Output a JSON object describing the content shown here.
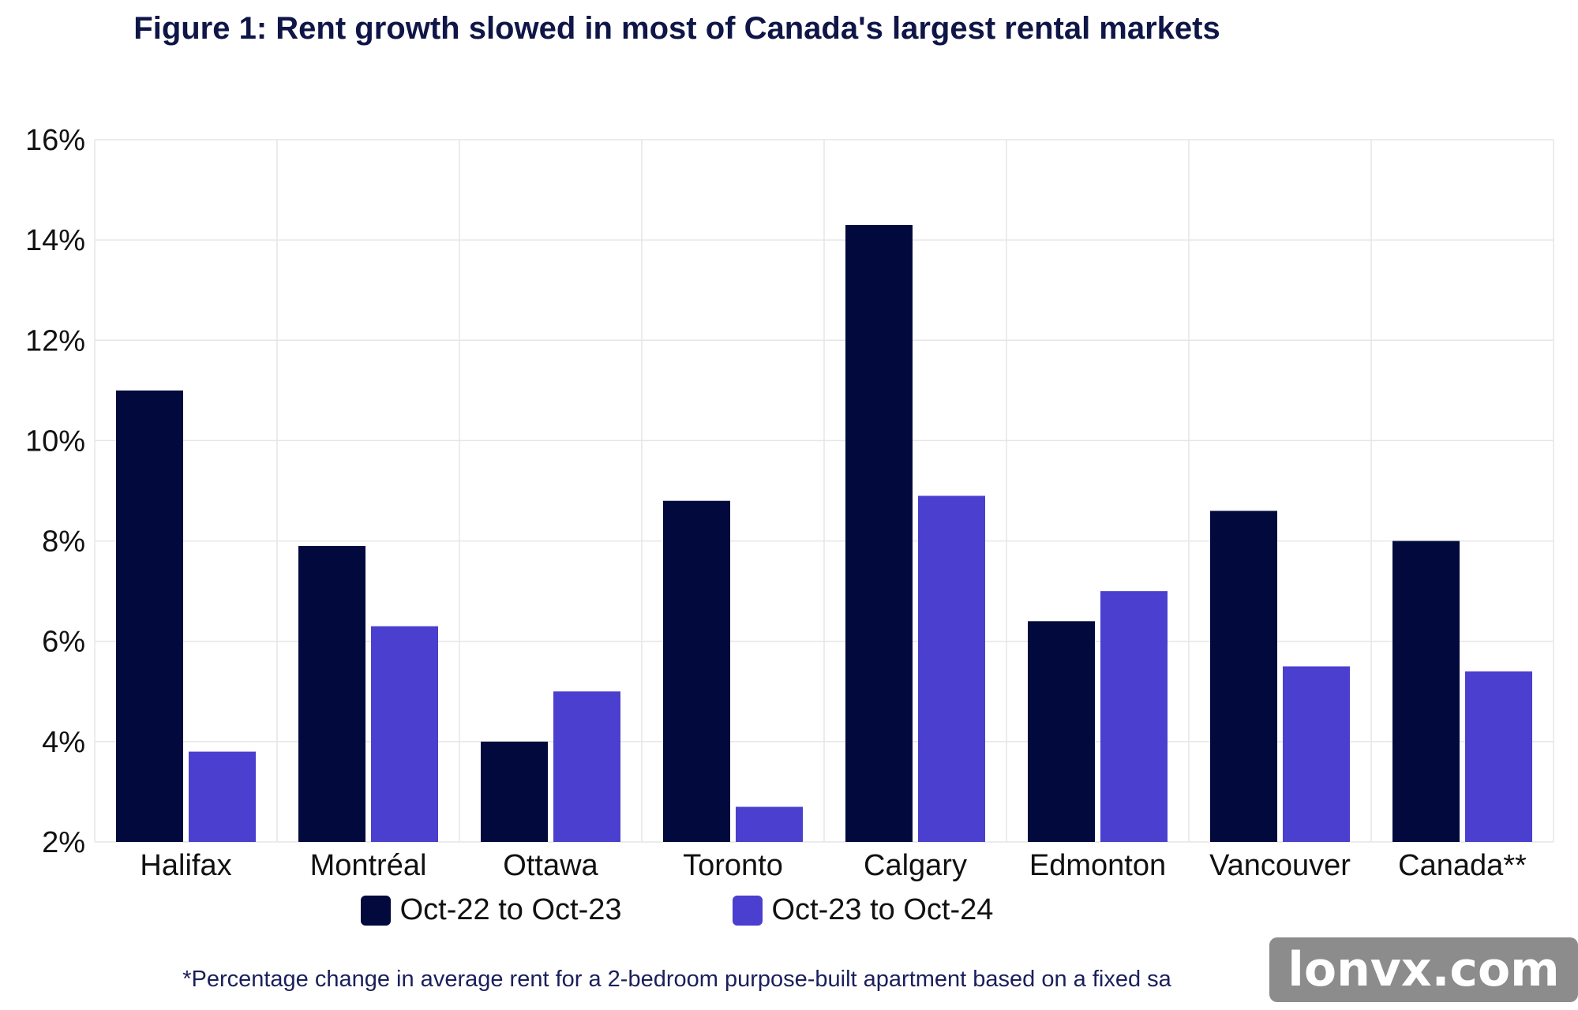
{
  "chart_data": {
    "type": "bar",
    "title": "Figure 1: Rent growth slowed in most of Canada's largest rental markets",
    "categories": [
      "Halifax",
      "Montréal",
      "Ottawa",
      "Toronto",
      "Calgary",
      "Edmonton",
      "Vancouver",
      "Canada**"
    ],
    "series": [
      {
        "name": "Oct-22 to Oct-23",
        "color": "#020a3d",
        "values": [
          11.0,
          7.9,
          4.0,
          8.8,
          14.3,
          6.4,
          8.6,
          8.0
        ]
      },
      {
        "name": "Oct-23 to Oct-24",
        "color": "#4a3fcf",
        "values": [
          3.8,
          6.3,
          5.0,
          2.7,
          8.9,
          7.0,
          5.5,
          5.4
        ]
      }
    ],
    "yticks": [
      "2%",
      "4%",
      "6%",
      "8%",
      "10%",
      "12%",
      "14%",
      "16%"
    ],
    "ylim": [
      2,
      16
    ],
    "grid": true,
    "legend_position": "bottom",
    "footnote": "*Percentage change in average rent for a 2-bedroom purpose-built apartment based on a fixed sa"
  },
  "watermark": "lonvx.com"
}
